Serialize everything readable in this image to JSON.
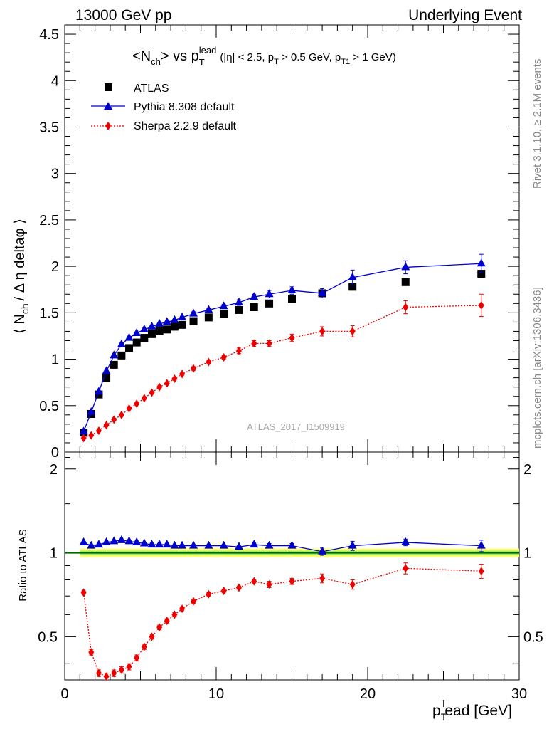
{
  "header": {
    "left": "13000 GeV pp",
    "right": "Underlying Event"
  },
  "side": {
    "rivet": "Rivet 3.1.10, ≥ 2.1M events",
    "mcplots": "mcplots.cern.ch [arXiv:1306.3436]"
  },
  "watermark": "ATLAS_2017_I1509919",
  "colors": {
    "atlas": "#000000",
    "pythia": "#0000cc",
    "sherpa": "#ee0000",
    "band_outer": "#ffff66",
    "band_inner": "#99ee66",
    "ratio_line": "#006600"
  },
  "chart_data": [
    {
      "type": "scatter",
      "title": "<N_ch> vs p_T^lead (|η| < 2.5, p_T > 0.5 GeV, p_T1 > 1 GeV)",
      "title_parts": {
        "lead": "<N",
        "ch": "ch",
        "vs": "> vs p",
        "T": "T",
        "lead_sup": "lead",
        "cond1": "(|η| < 2.5, p",
        "condT": "T",
        "cond2": " > 0.5 GeV, p",
        "condT1": "T1",
        "cond3": " > 1 GeV)"
      },
      "ylabel": "⟨ N_ch / Δη deltaφ ⟩",
      "ylabel_parts": {
        "a": "⟨ N",
        "ch": "ch",
        "b": "/ Δ η deltaφ ⟩"
      },
      "xlim": [
        0,
        30
      ],
      "ylim": [
        0,
        4.6
      ],
      "yticks": [
        0,
        0.5,
        1,
        1.5,
        2,
        2.5,
        3,
        3.5,
        4,
        4.5
      ],
      "ytick_labels": [
        "0",
        "0.5",
        "1",
        "1.5",
        "2",
        "2.5",
        "3",
        "3.5",
        "4",
        "4.5"
      ],
      "legend_position": "top-left",
      "series": [
        {
          "name": "ATLAS",
          "marker": "square",
          "x": [
            1.25,
            1.75,
            2.25,
            2.75,
            3.25,
            3.75,
            4.25,
            4.75,
            5.25,
            5.75,
            6.25,
            6.75,
            7.25,
            7.75,
            8.5,
            9.5,
            10.5,
            11.5,
            12.5,
            13.5,
            15.0,
            17.0,
            19.0,
            22.5,
            27.5
          ],
          "y": [
            0.21,
            0.41,
            0.62,
            0.8,
            0.94,
            1.04,
            1.12,
            1.18,
            1.23,
            1.27,
            1.3,
            1.32,
            1.35,
            1.37,
            1.41,
            1.45,
            1.49,
            1.53,
            1.56,
            1.6,
            1.65,
            1.71,
            1.78,
            1.83,
            1.92
          ]
        },
        {
          "name": "Pythia 8.308 default",
          "marker": "triangle",
          "x": [
            1.25,
            1.75,
            2.25,
            2.75,
            3.25,
            3.75,
            4.25,
            4.75,
            5.25,
            5.75,
            6.25,
            6.75,
            7.25,
            7.75,
            8.5,
            9.5,
            10.5,
            11.5,
            12.5,
            13.5,
            15.0,
            17.0,
            19.0,
            22.5,
            27.5
          ],
          "y": [
            0.22,
            0.43,
            0.65,
            0.87,
            1.04,
            1.16,
            1.23,
            1.28,
            1.32,
            1.35,
            1.38,
            1.4,
            1.42,
            1.45,
            1.49,
            1.53,
            1.57,
            1.61,
            1.67,
            1.7,
            1.74,
            1.71,
            1.88,
            1.99,
            2.03
          ],
          "err": [
            0.01,
            0.01,
            0.01,
            0.01,
            0.01,
            0.01,
            0.01,
            0.01,
            0.01,
            0.01,
            0.01,
            0.01,
            0.01,
            0.01,
            0.02,
            0.02,
            0.02,
            0.03,
            0.03,
            0.04,
            0.04,
            0.05,
            0.08,
            0.07,
            0.1
          ]
        },
        {
          "name": "Sherpa 2.2.9 default",
          "marker": "diamond",
          "x": [
            1.25,
            1.75,
            2.25,
            2.75,
            3.25,
            3.75,
            4.25,
            4.75,
            5.25,
            5.75,
            6.25,
            6.75,
            7.25,
            7.75,
            8.5,
            9.5,
            10.5,
            11.5,
            12.5,
            13.5,
            15.0,
            17.0,
            19.0,
            22.5,
            27.5
          ],
          "y": [
            0.15,
            0.18,
            0.23,
            0.29,
            0.35,
            0.4,
            0.47,
            0.52,
            0.58,
            0.64,
            0.7,
            0.74,
            0.79,
            0.84,
            0.9,
            0.97,
            1.02,
            1.09,
            1.17,
            1.17,
            1.23,
            1.3,
            1.3,
            1.56,
            1.58
          ],
          "err": [
            0.01,
            0.01,
            0.01,
            0.01,
            0.01,
            0.01,
            0.01,
            0.01,
            0.01,
            0.01,
            0.01,
            0.01,
            0.01,
            0.01,
            0.02,
            0.02,
            0.02,
            0.03,
            0.03,
            0.03,
            0.04,
            0.05,
            0.06,
            0.07,
            0.12
          ]
        }
      ]
    },
    {
      "type": "line",
      "ylabel": "Ratio to ATLAS",
      "xlabel": "p_T^lead [GeV]",
      "xlabel_parts": {
        "p": "p",
        "T": "T",
        "l": "l",
        "rest": "ead [GeV]"
      },
      "xlim": [
        0,
        30
      ],
      "ylim": [
        0.35,
        2.3
      ],
      "log_y": true,
      "xticks": [
        0,
        10,
        20,
        30
      ],
      "xtick_labels": [
        "0",
        "10",
        "20",
        "30"
      ],
      "yticks": [
        0.5,
        1,
        2
      ],
      "ytick_labels": [
        "0.5",
        "1",
        "2"
      ],
      "series": [
        {
          "name": "Pythia 8.308 default",
          "x": [
            1.25,
            1.75,
            2.25,
            2.75,
            3.25,
            3.75,
            4.25,
            4.75,
            5.25,
            5.75,
            6.25,
            6.75,
            7.25,
            7.75,
            8.5,
            9.5,
            10.5,
            11.5,
            12.5,
            13.5,
            15.0,
            17.0,
            19.0,
            22.5,
            27.5
          ],
          "y": [
            1.09,
            1.06,
            1.07,
            1.09,
            1.1,
            1.11,
            1.1,
            1.09,
            1.08,
            1.07,
            1.07,
            1.07,
            1.06,
            1.06,
            1.06,
            1.06,
            1.06,
            1.05,
            1.07,
            1.06,
            1.06,
            1.01,
            1.06,
            1.09,
            1.06
          ],
          "err": [
            0.01,
            0.01,
            0.01,
            0.01,
            0.01,
            0.01,
            0.01,
            0.01,
            0.01,
            0.01,
            0.01,
            0.01,
            0.01,
            0.01,
            0.01,
            0.01,
            0.01,
            0.01,
            0.02,
            0.02,
            0.02,
            0.03,
            0.04,
            0.03,
            0.05
          ]
        },
        {
          "name": "Sherpa 2.2.9 default",
          "x": [
            1.25,
            1.75,
            2.25,
            2.75,
            3.25,
            3.75,
            4.25,
            4.75,
            5.25,
            5.75,
            6.25,
            6.75,
            7.25,
            7.75,
            8.5,
            9.5,
            10.5,
            11.5,
            12.5,
            13.5,
            15.0,
            17.0,
            19.0,
            22.5,
            27.5
          ],
          "y": [
            0.72,
            0.44,
            0.37,
            0.36,
            0.37,
            0.38,
            0.39,
            0.42,
            0.46,
            0.5,
            0.54,
            0.57,
            0.6,
            0.63,
            0.67,
            0.71,
            0.73,
            0.75,
            0.79,
            0.77,
            0.79,
            0.81,
            0.77,
            0.88,
            0.86
          ],
          "err": [
            0.01,
            0.01,
            0.01,
            0.01,
            0.01,
            0.01,
            0.01,
            0.01,
            0.01,
            0.01,
            0.01,
            0.01,
            0.01,
            0.01,
            0.01,
            0.01,
            0.01,
            0.01,
            0.01,
            0.02,
            0.02,
            0.03,
            0.03,
            0.04,
            0.05
          ]
        }
      ]
    }
  ]
}
